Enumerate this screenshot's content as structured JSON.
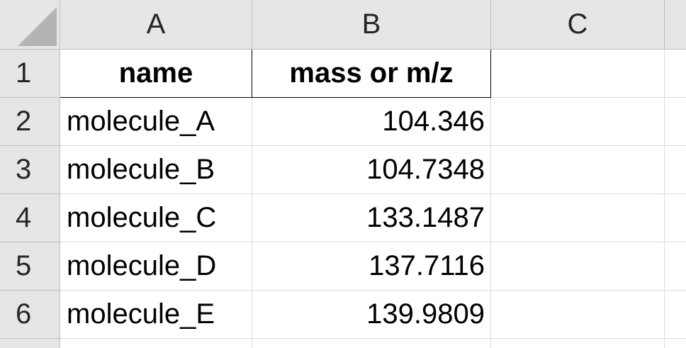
{
  "columns": [
    "A",
    "B",
    "C"
  ],
  "rows": [
    "1",
    "2",
    "3",
    "4",
    "5",
    "6"
  ],
  "header": {
    "name": "name",
    "mass": "mass or m/z"
  },
  "data": [
    {
      "name": "molecule_A",
      "mass": "104.346"
    },
    {
      "name": "molecule_B",
      "mass": "104.7348"
    },
    {
      "name": "molecule_C",
      "mass": "133.1487"
    },
    {
      "name": "molecule_D",
      "mass": "137.7116"
    },
    {
      "name": "molecule_E",
      "mass": "139.9809"
    }
  ],
  "colors": {
    "header_bg": "#e6e6e6",
    "gridline": "#d9d9d9",
    "corner_triangle": "#b4b4b4"
  }
}
